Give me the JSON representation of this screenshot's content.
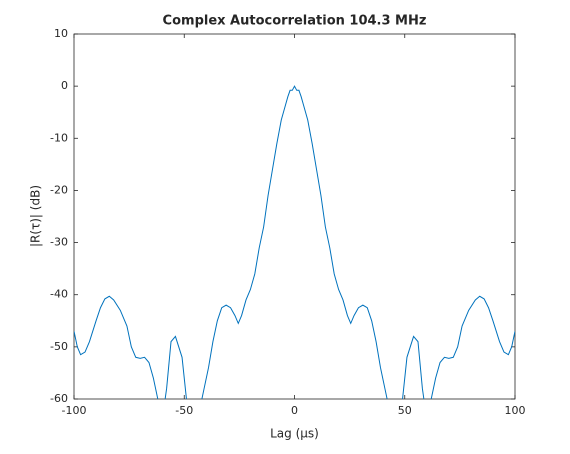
{
  "chart_data": {
    "type": "line",
    "title": "Complex Autocorrelation 104.3 MHz",
    "xlabel": "Lag (μs)",
    "ylabel": "|R(τ)| (dB)",
    "color": "#0072bd",
    "x": [
      -100,
      -98.5,
      -97,
      -95,
      -93,
      -90,
      -88,
      -86,
      -84,
      -82,
      -79,
      -76,
      -74,
      -72,
      -70,
      -68,
      -66,
      -64,
      -62,
      -60,
      -58,
      -56,
      -54,
      -51,
      -49,
      -46,
      -43,
      -41,
      -39,
      -37,
      -35,
      -33,
      -31,
      -29,
      -27,
      -25.5,
      -24,
      -22,
      -20,
      -18,
      -16,
      -14,
      -12,
      -10,
      -8,
      -6,
      -4,
      -3,
      -2,
      -1,
      0,
      1,
      2,
      3,
      4,
      6,
      8,
      10,
      12,
      14,
      16,
      18,
      20,
      22,
      24,
      25.5,
      27,
      29,
      31,
      33,
      35,
      37,
      39,
      41,
      43,
      46,
      49,
      51,
      54,
      56,
      58,
      60,
      62,
      64,
      66,
      68,
      70,
      72,
      74,
      76,
      79,
      82,
      84,
      86,
      88,
      90,
      93,
      95,
      97,
      98.5,
      100
    ],
    "values": [
      -47,
      -50,
      -51.5,
      -51,
      -49,
      -45,
      -42.5,
      -40.8,
      -40.3,
      -41,
      -43,
      -46,
      -50,
      -52,
      -52.2,
      -52,
      -53,
      -56,
      -60,
      -64,
      -58,
      -49,
      -48,
      -52,
      -60,
      -66,
      -62,
      -58,
      -54,
      -49,
      -45,
      -42.5,
      -42,
      -42.5,
      -44,
      -45.5,
      -44,
      -41,
      -39,
      -36,
      -31,
      -27,
      -21,
      -16,
      -11,
      -6.5,
      -3.5,
      -2,
      -0.8,
      -0.8,
      0,
      -0.8,
      -0.8,
      -2,
      -3.5,
      -6.5,
      -11,
      -16,
      -21,
      -27,
      -31,
      -36,
      -39,
      -41,
      -44,
      -45.5,
      -44,
      -42.5,
      -42,
      -42.5,
      -45,
      -49,
      -54,
      -58,
      -62,
      -66,
      -60,
      -52,
      -48,
      -49,
      -58,
      -64,
      -60,
      -56,
      -53,
      -52,
      -52.2,
      -52,
      -50,
      -46,
      -43,
      -41,
      -40.3,
      -40.8,
      -42.5,
      -45,
      -49,
      -51,
      -51.5,
      -50,
      -47
    ],
    "xlim": [
      -100,
      100
    ],
    "xticks": [
      -100,
      -50,
      0,
      50,
      100
    ],
    "ylim": [
      -60,
      10
    ],
    "yticks": [
      -60,
      -50,
      -40,
      -30,
      -20,
      -10,
      0,
      10
    ]
  }
}
